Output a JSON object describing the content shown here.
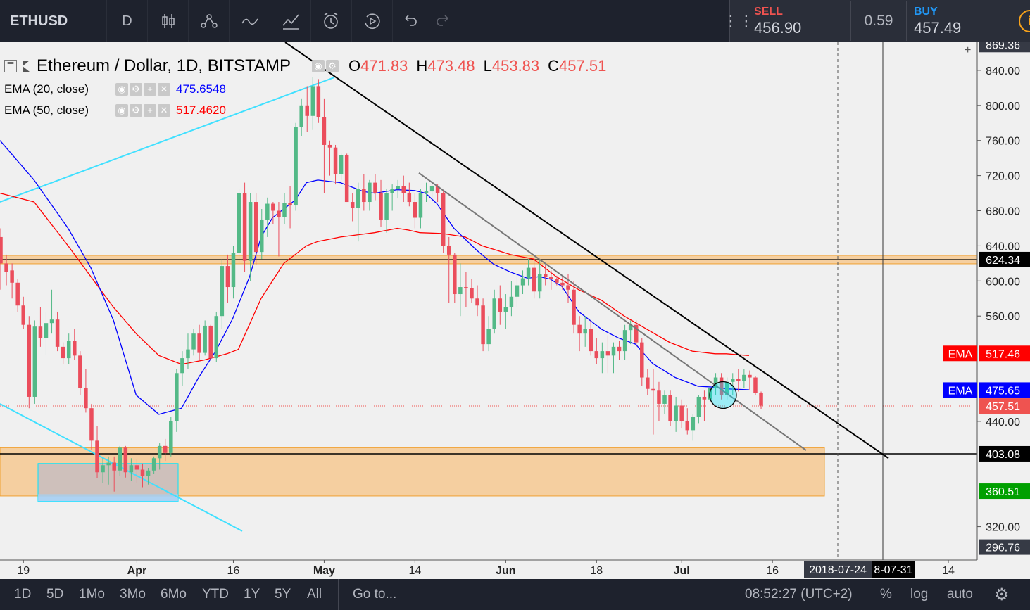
{
  "toolbar": {
    "symbol": "ETHUSD",
    "interval": "D",
    "icons": [
      "candles-style-icon",
      "indicators-icon",
      "compare-icon",
      "drawings-icon",
      "alert-icon",
      "replay-icon",
      "undo-icon",
      "redo-icon"
    ]
  },
  "trade": {
    "sell_label": "SELL",
    "sell_price": "456.90",
    "spread": "0.59",
    "buy_label": "BUY",
    "buy_price": "457.49",
    "info": "i",
    "sell_color": "#ef5350",
    "buy_color": "#2196f3"
  },
  "legend": {
    "title": "Ethereum / Dollar, 1D, BITSTAMP",
    "o_label": "O",
    "o": "471.83",
    "h_label": "H",
    "h": "473.48",
    "l_label": "L",
    "l": "453.83",
    "c_label": "C",
    "c": "457.51",
    "ema20_label": "EMA (20, close)",
    "ema20_value": "475.6548",
    "ema20_color": "#0000ff",
    "ema50_label": "EMA (50, close)",
    "ema50_value": "517.4620",
    "ema50_color": "#ff0000"
  },
  "chart_data": {
    "type": "candlestick",
    "symbol": "ETHUSD",
    "title": "Ethereum / Dollar, 1D, BITSTAMP",
    "ylim": [
      282,
      872
    ],
    "y_ticks": [
      "320.00",
      "440.00",
      "560.00",
      "600.00",
      "640.00",
      "680.00",
      "720.00",
      "760.00",
      "800.00",
      "840.00"
    ],
    "x_ticks": [
      "19",
      "Apr",
      "16",
      "May",
      "14",
      "Jun",
      "18",
      "Jul",
      "16",
      "14"
    ],
    "x_tick_index": [
      4,
      24,
      41,
      57,
      73,
      89,
      105,
      120,
      136,
      167
    ],
    "candles": [
      [
        650,
        660,
        590,
        620
      ],
      [
        620,
        630,
        595,
        610
      ],
      [
        612,
        620,
        580,
        598
      ],
      [
        598,
        602,
        565,
        572
      ],
      [
        572,
        582,
        545,
        550
      ],
      [
        550,
        560,
        455,
        468
      ],
      [
        468,
        555,
        460,
        548
      ],
      [
        548,
        570,
        525,
        535
      ],
      [
        535,
        565,
        515,
        552
      ],
      [
        552,
        590,
        540,
        556
      ],
      [
        556,
        565,
        520,
        525
      ],
      [
        525,
        530,
        505,
        512
      ],
      [
        512,
        540,
        505,
        532
      ],
      [
        532,
        545,
        510,
        515
      ],
      [
        515,
        520,
        470,
        478
      ],
      [
        478,
        500,
        450,
        455
      ],
      [
        455,
        460,
        408,
        418
      ],
      [
        418,
        435,
        375,
        382
      ],
      [
        382,
        398,
        370,
        390
      ],
      [
        390,
        400,
        368,
        393
      ],
      [
        393,
        400,
        360,
        384
      ],
      [
        384,
        412,
        378,
        410
      ],
      [
        410,
        412,
        376,
        382
      ],
      [
        382,
        398,
        372,
        390
      ],
      [
        390,
        397,
        370,
        385
      ],
      [
        385,
        392,
        365,
        378
      ],
      [
        378,
        387,
        368,
        384
      ],
      [
        384,
        400,
        380,
        398
      ],
      [
        398,
        415,
        385,
        412
      ],
      [
        412,
        420,
        395,
        404
      ],
      [
        404,
        445,
        400,
        440
      ],
      [
        440,
        500,
        428,
        495
      ],
      [
        495,
        520,
        480,
        512
      ],
      [
        512,
        540,
        500,
        522
      ],
      [
        522,
        545,
        515,
        540
      ],
      [
        540,
        550,
        510,
        518
      ],
      [
        518,
        555,
        515,
        549
      ],
      [
        549,
        550,
        510,
        512
      ],
      [
        512,
        565,
        508,
        560
      ],
      [
        560,
        625,
        545,
        617
      ],
      [
        617,
        630,
        575,
        593
      ],
      [
        593,
        640,
        580,
        632
      ],
      [
        632,
        705,
        620,
        700
      ],
      [
        700,
        712,
        610,
        623
      ],
      [
        623,
        700,
        600,
        690
      ],
      [
        690,
        700,
        618,
        633
      ],
      [
        633,
        682,
        625,
        670
      ],
      [
        670,
        695,
        650,
        688
      ],
      [
        688,
        690,
        665,
        680
      ],
      [
        680,
        690,
        628,
        673
      ],
      [
        673,
        700,
        665,
        689
      ],
      [
        689,
        708,
        660,
        686
      ],
      [
        686,
        780,
        680,
        775
      ],
      [
        775,
        808,
        765,
        800
      ],
      [
        800,
        822,
        770,
        788
      ],
      [
        788,
        832,
        772,
        822
      ],
      [
        822,
        830,
        780,
        787
      ],
      [
        787,
        808,
        700,
        755
      ],
      [
        755,
        760,
        720,
        752
      ],
      [
        752,
        755,
        710,
        722
      ],
      [
        722,
        745,
        715,
        743
      ],
      [
        743,
        745,
        690,
        690
      ],
      [
        690,
        700,
        668,
        683
      ],
      [
        683,
        712,
        645,
        705
      ],
      [
        705,
        722,
        680,
        690
      ],
      [
        690,
        715,
        680,
        712
      ],
      [
        712,
        722,
        692,
        700
      ],
      [
        700,
        715,
        662,
        670
      ],
      [
        670,
        705,
        655,
        700
      ],
      [
        700,
        710,
        680,
        705
      ],
      [
        705,
        715,
        694,
        708
      ],
      [
        708,
        720,
        690,
        700
      ],
      [
        700,
        712,
        685,
        690
      ],
      [
        690,
        700,
        660,
        672
      ],
      [
        672,
        705,
        660,
        700
      ],
      [
        700,
        712,
        690,
        702
      ],
      [
        702,
        715,
        695,
        708
      ],
      [
        708,
        710,
        690,
        700
      ],
      [
        700,
        704,
        632,
        640
      ],
      [
        640,
        650,
        575,
        630
      ],
      [
        630,
        632,
        575,
        585
      ],
      [
        585,
        620,
        560,
        593
      ],
      [
        593,
        610,
        570,
        592
      ],
      [
        592,
        602,
        575,
        580
      ],
      [
        580,
        595,
        560,
        572
      ],
      [
        572,
        580,
        520,
        528
      ],
      [
        528,
        560,
        520,
        545
      ],
      [
        545,
        590,
        540,
        580
      ],
      [
        580,
        595,
        550,
        565
      ],
      [
        565,
        585,
        545,
        570
      ],
      [
        570,
        600,
        560,
        582
      ],
      [
        582,
        610,
        570,
        595
      ],
      [
        595,
        612,
        585,
        603
      ],
      [
        603,
        625,
        595,
        615
      ],
      [
        615,
        628,
        580,
        588
      ],
      [
        588,
        625,
        580,
        608
      ],
      [
        608,
        618,
        595,
        605
      ],
      [
        605,
        612,
        590,
        602
      ],
      [
        602,
        606,
        595,
        598
      ],
      [
        598,
        605,
        590,
        595
      ],
      [
        595,
        608,
        575,
        590
      ],
      [
        590,
        600,
        540,
        550
      ],
      [
        550,
        560,
        520,
        540
      ],
      [
        540,
        560,
        525,
        545
      ],
      [
        545,
        555,
        515,
        520
      ],
      [
        520,
        535,
        505,
        512
      ],
      [
        512,
        530,
        495,
        520
      ],
      [
        520,
        538,
        495,
        515
      ],
      [
        515,
        530,
        495,
        525
      ],
      [
        525,
        532,
        510,
        520
      ],
      [
        520,
        550,
        510,
        544
      ],
      [
        544,
        555,
        528,
        550
      ],
      [
        550,
        555,
        525,
        530
      ],
      [
        530,
        535,
        480,
        490
      ],
      [
        490,
        500,
        470,
        477
      ],
      [
        477,
        500,
        425,
        475
      ],
      [
        475,
        485,
        440,
        460
      ],
      [
        460,
        475,
        448,
        470
      ],
      [
        470,
        475,
        435,
        440
      ],
      [
        440,
        468,
        428,
        458
      ],
      [
        458,
        465,
        432,
        440
      ],
      [
        440,
        455,
        425,
        430
      ],
      [
        430,
        448,
        418,
        445
      ],
      [
        445,
        470,
        438,
        468
      ],
      [
        468,
        475,
        440,
        465
      ],
      [
        465,
        480,
        450,
        478
      ],
      [
        478,
        495,
        470,
        490
      ],
      [
        490,
        495,
        465,
        470
      ],
      [
        470,
        490,
        465,
        485
      ],
      [
        485,
        495,
        470,
        488
      ],
      [
        488,
        500,
        474,
        486
      ],
      [
        486,
        500,
        478,
        493
      ],
      [
        493,
        498,
        476,
        490
      ],
      [
        490,
        492,
        470,
        472
      ],
      [
        472,
        474,
        454,
        458
      ]
    ],
    "ema20": [
      [
        0,
        760
      ],
      [
        6,
        715
      ],
      [
        12,
        660
      ],
      [
        16,
        615
      ],
      [
        20,
        555
      ],
      [
        24,
        470
      ],
      [
        28,
        448
      ],
      [
        32,
        455
      ],
      [
        35,
        490
      ],
      [
        38,
        520
      ],
      [
        41,
        557
      ],
      [
        44,
        605
      ],
      [
        46,
        650
      ],
      [
        48,
        672
      ],
      [
        52,
        692
      ],
      [
        54,
        712
      ],
      [
        56,
        715
      ],
      [
        60,
        712
      ],
      [
        64,
        702
      ],
      [
        66,
        700
      ],
      [
        70,
        704
      ],
      [
        73,
        703
      ],
      [
        75,
        700
      ],
      [
        77,
        688
      ],
      [
        80,
        660
      ],
      [
        84,
        635
      ],
      [
        87,
        619
      ],
      [
        90,
        610
      ],
      [
        93,
        603
      ],
      [
        95,
        605
      ],
      [
        97,
        602
      ],
      [
        99,
        594
      ],
      [
        102,
        565
      ],
      [
        106,
        545
      ],
      [
        109,
        535
      ],
      [
        112,
        528
      ],
      [
        115,
        506
      ],
      [
        119,
        490
      ],
      [
        123,
        480
      ],
      [
        126,
        479
      ],
      [
        128,
        477
      ],
      [
        132,
        476
      ]
    ],
    "ema50": [
      [
        0,
        700
      ],
      [
        6,
        690
      ],
      [
        12,
        640
      ],
      [
        16,
        605
      ],
      [
        20,
        570
      ],
      [
        24,
        540
      ],
      [
        28,
        515
      ],
      [
        32,
        505
      ],
      [
        36,
        510
      ],
      [
        40,
        517
      ],
      [
        42,
        522
      ],
      [
        46,
        580
      ],
      [
        50,
        620
      ],
      [
        54,
        640
      ],
      [
        56,
        645
      ],
      [
        60,
        650
      ],
      [
        66,
        655
      ],
      [
        70,
        660
      ],
      [
        72,
        658
      ],
      [
        74,
        655
      ],
      [
        78,
        654
      ],
      [
        82,
        650
      ],
      [
        85,
        640
      ],
      [
        90,
        630
      ],
      [
        94,
        625
      ],
      [
        98,
        605
      ],
      [
        102,
        590
      ],
      [
        106,
        578
      ],
      [
        110,
        560
      ],
      [
        114,
        545
      ],
      [
        118,
        530
      ],
      [
        122,
        520
      ],
      [
        126,
        517
      ],
      [
        128,
        517
      ],
      [
        130,
        516
      ],
      [
        132,
        515
      ]
    ],
    "horizontal_levels": [
      624.34,
      403.08
    ],
    "zone": [
      355,
      410
    ],
    "inner_box": [
      349,
      392
    ],
    "price_labels": [
      {
        "text": "869.36",
        "price": 869.36,
        "bg": "#363a45",
        "fg": "#ffffff"
      },
      {
        "text": "624.34",
        "price": 624.34,
        "bg": "#000000",
        "fg": "#ffffff"
      },
      {
        "text": "517.46",
        "price": 517.46,
        "bg": "#ff0000",
        "fg": "#ffffff",
        "tag": "EMA"
      },
      {
        "text": "475.65",
        "price": 475.65,
        "bg": "#0000ff",
        "fg": "#ffffff",
        "tag": "EMA"
      },
      {
        "text": "457.51",
        "price": 457.51,
        "bg": "#ef5350",
        "fg": "#ffffff"
      },
      {
        "text": "403.08",
        "price": 403.08,
        "bg": "#000000",
        "fg": "#ffffff"
      },
      {
        "text": "360.51",
        "price": 360.51,
        "bg": "#00a000",
        "fg": "#ffffff"
      },
      {
        "text": "296.76",
        "price": 296.76,
        "bg": "#363a45",
        "fg": "#ffffff"
      }
    ],
    "date_labels": [
      "2018-07-24",
      "8-07-31"
    ]
  },
  "bottom": {
    "ranges": [
      "1D",
      "5D",
      "1Mo",
      "3Mo",
      "6Mo",
      "YTD",
      "1Y",
      "5Y",
      "All"
    ],
    "goto": "Go to...",
    "clock": "08:52:27 (UTC+2)",
    "percent": "%",
    "log": "log",
    "auto": "auto"
  }
}
